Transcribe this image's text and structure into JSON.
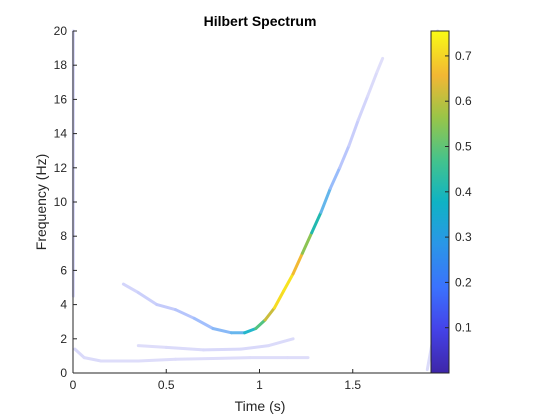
{
  "chart_data": {
    "type": "line",
    "title": "Hilbert Spectrum",
    "xlabel": "Time (s)",
    "ylabel": "Frequency (Hz)",
    "xlim": [
      0,
      2
    ],
    "ylim": [
      0,
      20
    ],
    "xticks": [
      0,
      0.5,
      1,
      1.5
    ],
    "xtick_labels": [
      "0",
      "0.5",
      "1",
      "1.5"
    ],
    "yticks": [
      0,
      2,
      4,
      6,
      8,
      10,
      12,
      14,
      16,
      18,
      20
    ],
    "ytick_labels": [
      "0",
      "2",
      "4",
      "6",
      "8",
      "10",
      "12",
      "14",
      "16",
      "18",
      "20"
    ],
    "grid": false,
    "colorbar": {
      "colormap": "parula",
      "range": [
        0,
        0.755
      ],
      "ticks": [
        0.1,
        0.2,
        0.3,
        0.4,
        0.5,
        0.6,
        0.7
      ],
      "tick_labels": [
        "0.1",
        "0.2",
        "0.3",
        "0.4",
        "0.5",
        "0.6",
        "0.7"
      ],
      "location": "right"
    },
    "series": [
      {
        "id": "imf1",
        "points": [
          [
            0.27,
            5.2,
            0.1
          ],
          [
            0.35,
            4.7,
            0.12
          ],
          [
            0.45,
            4.0,
            0.13
          ],
          [
            0.55,
            3.7,
            0.15
          ],
          [
            0.65,
            3.2,
            0.18
          ],
          [
            0.75,
            2.6,
            0.22
          ],
          [
            0.85,
            2.35,
            0.26
          ],
          [
            0.92,
            2.35,
            0.32
          ],
          [
            0.98,
            2.6,
            0.42
          ],
          [
            1.03,
            3.1,
            0.55
          ],
          [
            1.08,
            3.8,
            0.68
          ],
          [
            1.13,
            4.8,
            0.74
          ],
          [
            1.18,
            5.8,
            0.7
          ],
          [
            1.23,
            7.0,
            0.62
          ],
          [
            1.28,
            8.2,
            0.48
          ],
          [
            1.33,
            9.4,
            0.34
          ],
          [
            1.38,
            10.8,
            0.25
          ],
          [
            1.43,
            12.0,
            0.18
          ],
          [
            1.48,
            13.3,
            0.14
          ],
          [
            1.53,
            14.8,
            0.12
          ],
          [
            1.58,
            16.2,
            0.1
          ],
          [
            1.63,
            17.6,
            0.09
          ],
          [
            1.66,
            18.4,
            0.08
          ]
        ]
      },
      {
        "id": "imf2",
        "points": [
          [
            0.01,
            1.4,
            0.1
          ],
          [
            0.06,
            0.9,
            0.1
          ],
          [
            0.15,
            0.7,
            0.09
          ],
          [
            0.35,
            0.7,
            0.09
          ],
          [
            0.55,
            0.8,
            0.09
          ],
          [
            0.75,
            0.85,
            0.09
          ],
          [
            0.95,
            0.9,
            0.09
          ],
          [
            1.15,
            0.9,
            0.09
          ],
          [
            1.26,
            0.9,
            0.09
          ]
        ]
      },
      {
        "id": "imf3",
        "points": [
          [
            0.35,
            1.6,
            0.09
          ],
          [
            0.5,
            1.5,
            0.09
          ],
          [
            0.7,
            1.35,
            0.1
          ],
          [
            0.9,
            1.4,
            0.1
          ],
          [
            1.05,
            1.6,
            0.1
          ],
          [
            1.18,
            2.0,
            0.09
          ]
        ]
      },
      {
        "id": "edge-right",
        "points": [
          [
            1.9,
            0.2,
            0.09
          ],
          [
            1.93,
            2.0,
            0.1
          ],
          [
            1.94,
            6.0,
            0.1
          ],
          [
            1.945,
            10.0,
            0.1
          ],
          [
            1.95,
            15.0,
            0.1
          ],
          [
            1.955,
            20.0,
            0.1
          ]
        ]
      },
      {
        "id": "edge-left",
        "points": [
          [
            0.002,
            4.5,
            0.1
          ],
          [
            0.002,
            10.0,
            0.1
          ],
          [
            0.002,
            20.0,
            0.1
          ]
        ]
      }
    ]
  }
}
